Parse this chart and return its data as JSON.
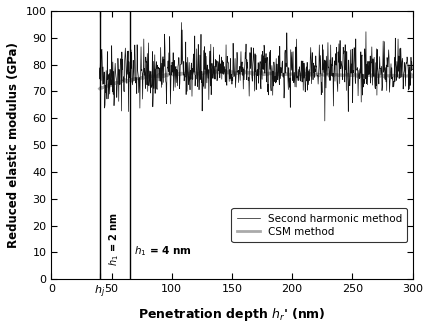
{
  "title": "",
  "xlabel": "Penetration depth $h_r$' (nm)",
  "ylabel": "Reduced elastic modulus (GPa)",
  "xlim": [
    0,
    300
  ],
  "ylim": [
    0,
    100
  ],
  "yticks": [
    0,
    10,
    20,
    30,
    40,
    50,
    60,
    70,
    80,
    90,
    100
  ],
  "vline1_x": 40,
  "vline2_x": 65,
  "vline1_label": "$h_1$ = 2 nm",
  "vline2_label": "$h_1$ = 4 nm",
  "legend_labels": [
    "Second harmonic method",
    "CSM method"
  ],
  "line_color_harmonic": "#111111",
  "line_color_csm": "#aaaaaa",
  "background_color": "#ffffff",
  "seed": 42,
  "harm_xstart": 40,
  "harm_xend": 300,
  "csm_xstart": 40,
  "csm_xend": 300,
  "csm_ystart": 71.0,
  "csm_ypeak": 77.5,
  "csm_ypeak_x": 130,
  "csm_yend": 75.5
}
